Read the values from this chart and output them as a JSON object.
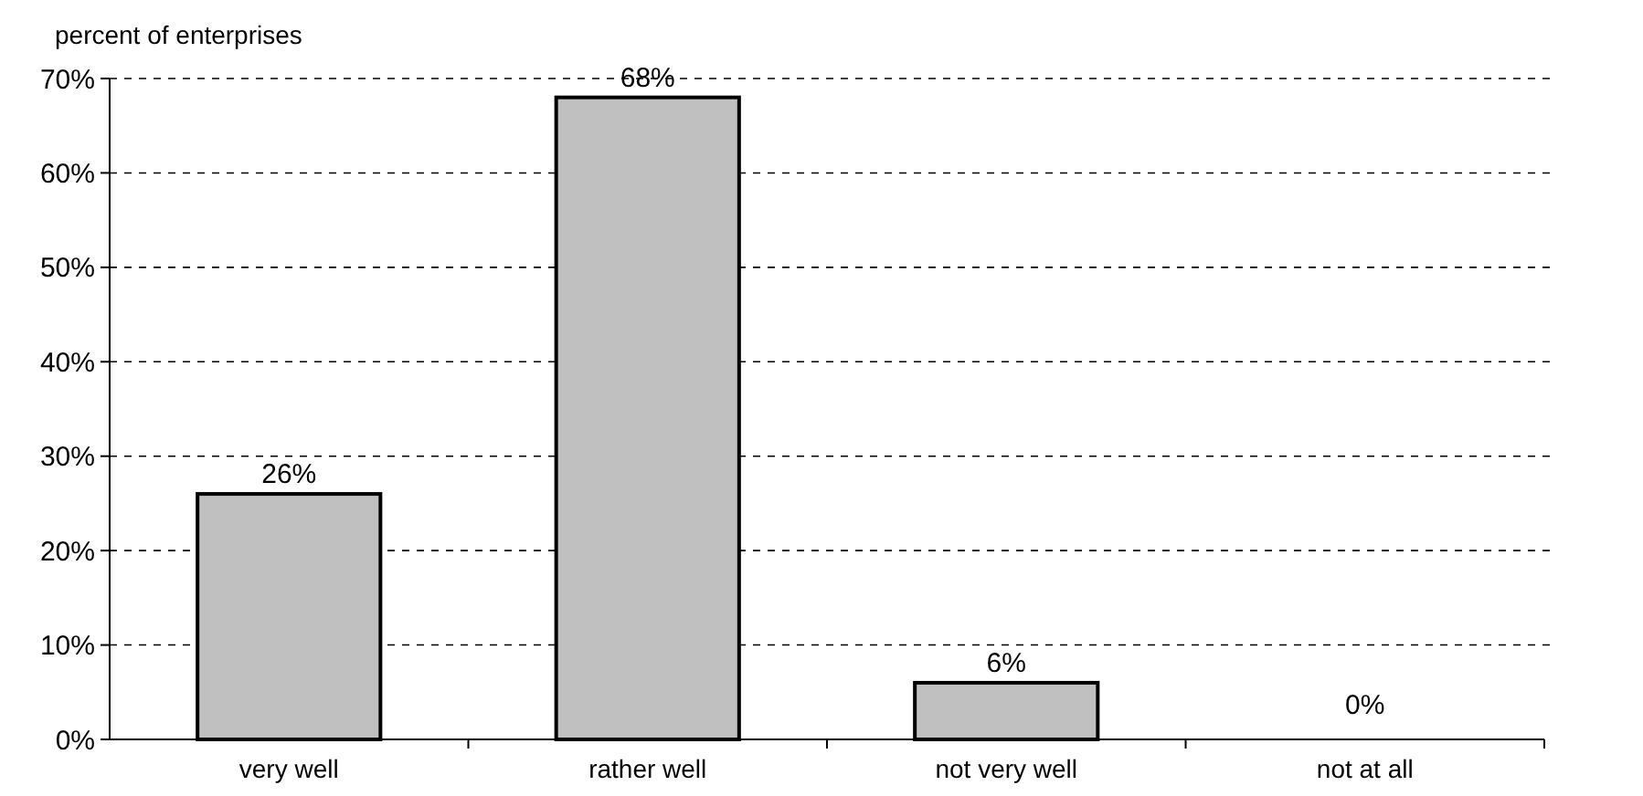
{
  "chart_data": {
    "type": "bar",
    "ylabel": "percent of enterprises",
    "categories": [
      "very well",
      "rather well",
      "not very well",
      "not at all"
    ],
    "values": [
      26,
      68,
      6,
      0
    ],
    "value_labels": [
      "26%",
      "68%",
      "6%",
      "0%"
    ],
    "color": "#c0c0c0",
    "ylim": [
      0,
      70
    ],
    "yticks": [
      {
        "value": 0,
        "label": "0%"
      },
      {
        "value": 10,
        "label": "10%"
      },
      {
        "value": 20,
        "label": "20%"
      },
      {
        "value": 30,
        "label": "30%"
      },
      {
        "value": 40,
        "label": "40%"
      },
      {
        "value": 50,
        "label": "50%"
      },
      {
        "value": 60,
        "label": "60%"
      },
      {
        "value": 70,
        "label": "70%"
      }
    ],
    "grid": "y"
  }
}
